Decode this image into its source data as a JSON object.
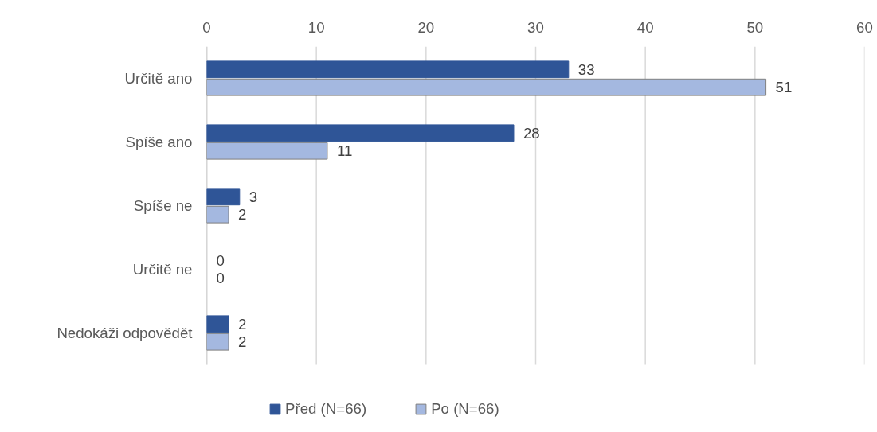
{
  "chart_data": {
    "type": "bar",
    "orientation": "horizontal",
    "categories": [
      "Určitě ano",
      "Spíše ano",
      "Spíše ne",
      "Určitě ne",
      "Nedokáži odpovědět"
    ],
    "series": [
      {
        "name": "Před (N=66)",
        "color": "#2f5597",
        "values": [
          33,
          28,
          3,
          0,
          2
        ]
      },
      {
        "name": "Po (N=66)",
        "color": "#a4b8e0",
        "values": [
          51,
          11,
          2,
          0,
          2
        ]
      }
    ],
    "xlim": [
      0,
      60
    ],
    "xticks": [
      0,
      10,
      20,
      30,
      40,
      50,
      60
    ],
    "grid": "x",
    "legend": "bottom",
    "data_labels": true
  }
}
